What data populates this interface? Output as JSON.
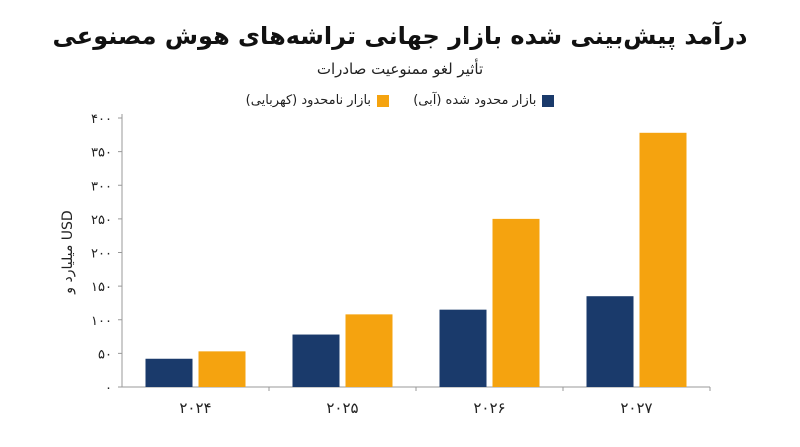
{
  "title": "درآمد پیش‌بینی شده بازار جهانی تراشه‌های هوش مصنوعی",
  "subtitle": "تأثیر لغو ممنوعیت صادرات",
  "colors": {
    "restricted": "#1a3a6b",
    "unrestricted": "#f5a30f",
    "axis": "#999999"
  },
  "chart_data": {
    "type": "bar",
    "categories": [
      "۲۰۲۴",
      "۲۰۲۵",
      "۲۰۲۶",
      "۲۰۲۷"
    ],
    "series": [
      {
        "name": "بازار محدود شده (آبی)",
        "values": [
          42,
          78,
          115,
          135
        ]
      },
      {
        "name": "بازار نامحدود (کهربایی)",
        "values": [
          53,
          108,
          250,
          378
        ]
      }
    ],
    "ylabel": "میلیارد و USD",
    "ylim": [
      0,
      400
    ],
    "yticks": [
      0,
      50,
      100,
      150,
      200,
      250,
      300,
      350,
      400
    ],
    "ytick_labels": [
      "۰",
      "۵۰",
      "۱۰۰",
      "۱۵۰",
      "۲۰۰",
      "۲۵۰",
      "۳۰۰",
      "۳۵۰",
      "۴۰۰"
    ],
    "grid": false,
    "legend_position": "top-center"
  }
}
